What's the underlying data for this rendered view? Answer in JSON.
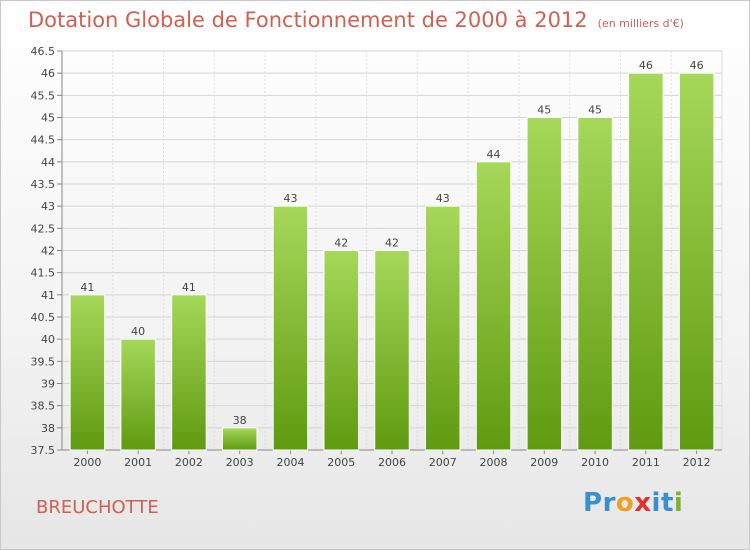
{
  "title": "Dotation Globale de Fonctionnement de 2000 à 2012",
  "subtitle": "(en milliers d'€)",
  "commune": "BREUCHOTTE",
  "logo": {
    "text": "Proxiti",
    "letters": [
      "P",
      "r",
      "o",
      "x",
      "i",
      "t",
      "i"
    ],
    "colors": [
      "#3a8fd0",
      "#3a8fd0",
      "#f0a020",
      "#e03030",
      "#3a8fd0",
      "#3a8fd0",
      "#80b030"
    ]
  },
  "colors": {
    "title": "#d06050",
    "bar_top": "#a6d85a",
    "bar_bottom": "#5f9a10"
  },
  "chart_data": {
    "type": "bar",
    "categories": [
      "2000",
      "2001",
      "2002",
      "2003",
      "2004",
      "2005",
      "2006",
      "2007",
      "2008",
      "2009",
      "2010",
      "2011",
      "2012"
    ],
    "values": [
      41,
      40,
      41,
      38,
      43,
      42,
      42,
      43,
      44,
      45,
      45,
      46,
      46
    ],
    "data_labels": [
      "41",
      "40",
      "41",
      "38",
      "43",
      "42",
      "42",
      "43",
      "44",
      "45",
      "45",
      "46",
      "46"
    ],
    "ylim": [
      37.5,
      46.5
    ],
    "yticks": [
      "37.5",
      "38",
      "38.5",
      "39",
      "39.5",
      "40",
      "40.5",
      "41",
      "41.5",
      "42",
      "42.5",
      "43",
      "43.5",
      "44",
      "44.5",
      "45",
      "45.5",
      "46",
      "46.5"
    ],
    "grid": true,
    "legend": "none"
  }
}
